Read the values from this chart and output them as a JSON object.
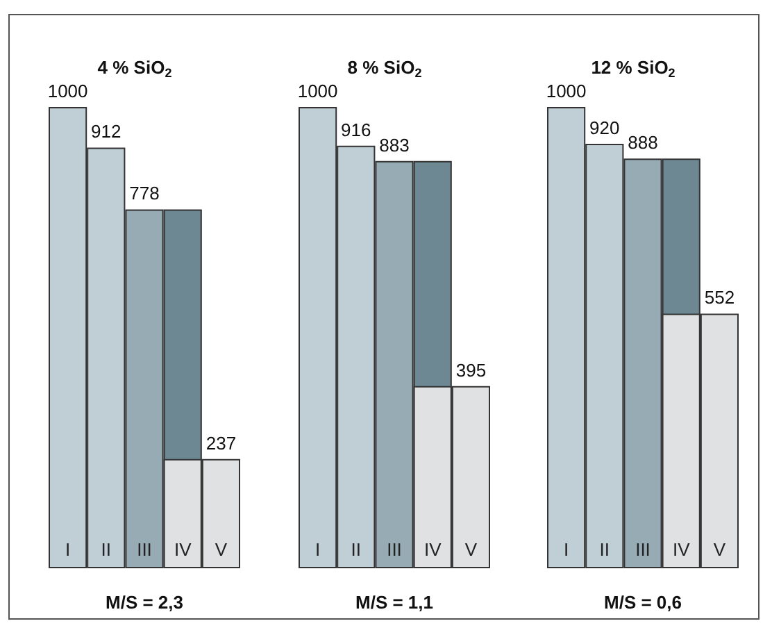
{
  "chart_data": [
    {
      "type": "bar",
      "title": "4 % SiO$_{2}$",
      "xlabel": "M/S = 2,3",
      "categories": [
        "I",
        "II",
        "III",
        "IV",
        "V"
      ],
      "series": [
        {
          "values": [
            1000,
            912,
            778,
            778,
            237
          ],
          "colors": [
            "#c0ced6",
            "#c0ced6",
            "#97abb5",
            "#6d8893",
            "#e0e1e3"
          ],
          "value_labels": [
            "1000",
            "912",
            "778",
            null,
            "237"
          ]
        },
        {
          "values": [
            null,
            null,
            null,
            237,
            null
          ],
          "colors": [
            null,
            null,
            null,
            "#e0e1e3",
            null
          ]
        }
      ]
    },
    {
      "type": "bar",
      "title": "8 % SiO$_{2}$",
      "xlabel": "M/S = 1,1",
      "categories": [
        "I",
        "II",
        "III",
        "IV",
        "V"
      ],
      "series": [
        {
          "values": [
            1000,
            916,
            883,
            883,
            395
          ],
          "colors": [
            "#c0ced6",
            "#c0ced6",
            "#97abb5",
            "#6d8893",
            "#e0e1e3"
          ],
          "value_labels": [
            "1000",
            "916",
            "883",
            null,
            "395"
          ]
        },
        {
          "values": [
            null,
            null,
            null,
            395,
            null
          ],
          "colors": [
            null,
            null,
            null,
            "#e0e1e3",
            null
          ]
        }
      ]
    },
    {
      "type": "bar",
      "title": "12 % SiO$_{2}$",
      "xlabel": "M/S = 0,6",
      "categories": [
        "I",
        "II",
        "III",
        "IV",
        "V"
      ],
      "series": [
        {
          "values": [
            1000,
            920,
            888,
            888,
            552
          ],
          "colors": [
            "#c0ced6",
            "#c0ced6",
            "#97abb5",
            "#6d8893",
            "#e0e1e3"
          ],
          "value_labels": [
            "1000",
            "920",
            "888",
            null,
            "552"
          ]
        },
        {
          "values": [
            null,
            null,
            null,
            552,
            null
          ],
          "colors": [
            null,
            null,
            null,
            "#e0e1e3",
            null
          ]
        }
      ]
    }
  ]
}
